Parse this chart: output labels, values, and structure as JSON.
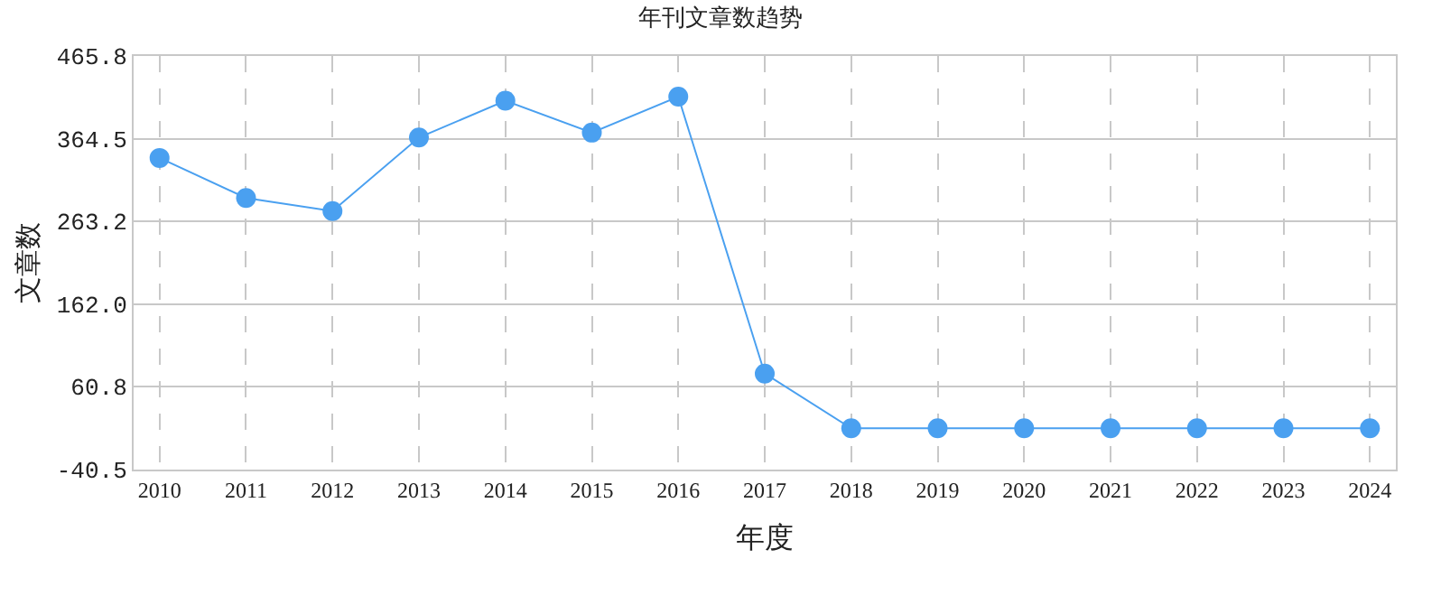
{
  "chart_data": {
    "type": "line",
    "title": "年刊文章数趋势",
    "xlabel": "年度",
    "ylabel": "文章数",
    "categories": [
      "2010",
      "2011",
      "2012",
      "2013",
      "2014",
      "2015",
      "2016",
      "2017",
      "2018",
      "2019",
      "2020",
      "2021",
      "2022",
      "2023",
      "2024"
    ],
    "series": [
      {
        "color": "#4aa0f0",
        "values": [
          341,
          292,
          276,
          366,
          411,
          372,
          416,
          77,
          10,
          10,
          10,
          10,
          10,
          10,
          10
        ]
      }
    ],
    "ylim": [
      -40.5,
      465.8
    ],
    "yticks": [
      {
        "value": -40.5,
        "label": "-40.5"
      },
      {
        "value": 60.8,
        "label": "60.8"
      },
      {
        "value": 162.0,
        "label": "162.0"
      },
      {
        "value": 263.2,
        "label": "263.2"
      },
      {
        "value": 364.5,
        "label": "364.5"
      },
      {
        "value": 465.8,
        "label": "465.8"
      }
    ],
    "grid": true,
    "marker": "circle",
    "line_style": "solid",
    "legend": false
  }
}
